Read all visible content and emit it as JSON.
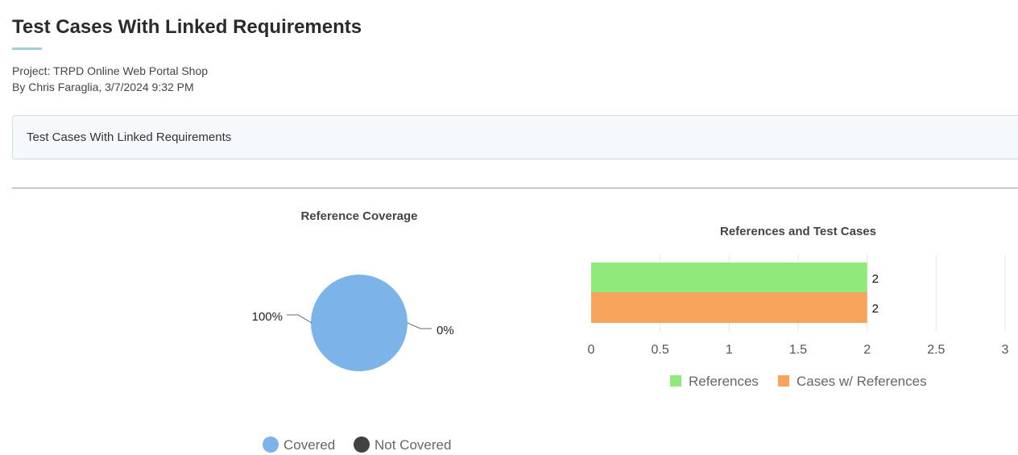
{
  "header": {
    "title": "Test Cases With Linked Requirements",
    "project": "Project: TRPD Online Web Portal Shop",
    "byline": "By Chris Faraglia, 3/7/2024 9:32 PM"
  },
  "description": {
    "text": "Test Cases With Linked Requirements"
  },
  "chart_data": [
    {
      "type": "pie",
      "title": "Reference Coverage",
      "slices": [
        {
          "label": "Covered",
          "value": 100,
          "display": "100%",
          "color": "#7cb4ea"
        },
        {
          "label": "Not Covered",
          "value": 0,
          "display": "0%",
          "color": "#424242"
        }
      ],
      "legend_position": "bottom"
    },
    {
      "type": "bar",
      "orientation": "horizontal",
      "title": "References and Test Cases",
      "series": [
        {
          "name": "References",
          "values": [
            2
          ],
          "color": "#8fea7b"
        },
        {
          "name": "Cases w/ References",
          "values": [
            2
          ],
          "color": "#f7a35c"
        }
      ],
      "xlim": [
        0,
        3
      ],
      "ticks": [
        "0",
        "0.5",
        "1",
        "1.5",
        "2",
        "2.5",
        "3"
      ],
      "grid": true,
      "legend_position": "bottom"
    }
  ]
}
